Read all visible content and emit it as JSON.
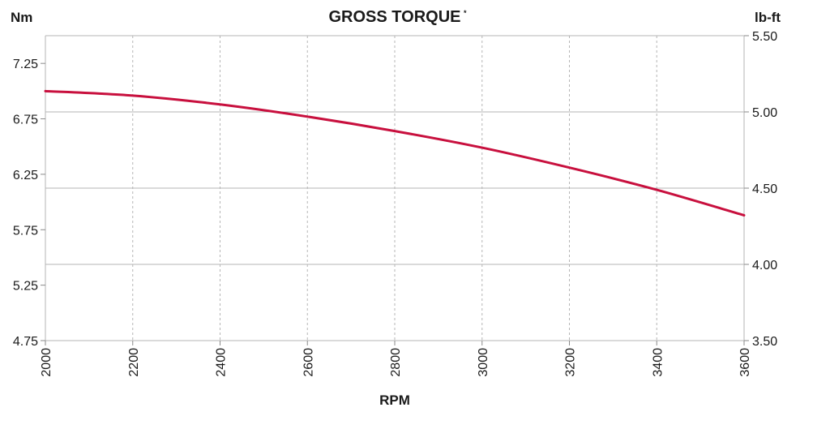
{
  "chart_data": {
    "type": "line",
    "title": "GROSS TORQUE",
    "title_superscript": "*",
    "xlabel": "RPM",
    "ylabel_left": "Nm",
    "ylabel_right": "lb-ft",
    "xlim": [
      2000,
      3600
    ],
    "xticks": [
      "2000",
      "2200",
      "2400",
      "2600",
      "2800",
      "3000",
      "3200",
      "3400",
      "3600"
    ],
    "xtick_values": [
      2000,
      2200,
      2400,
      2600,
      2800,
      3000,
      3200,
      3400,
      3600
    ],
    "ylim_left": [
      4.75,
      7.5
    ],
    "yticks_left": [
      "4.75",
      "5.25",
      "5.75",
      "6.25",
      "6.75",
      "7.25"
    ],
    "ytick_values_left": [
      4.75,
      5.25,
      5.75,
      6.25,
      6.75,
      7.25
    ],
    "ylim_right": [
      3.5,
      5.5
    ],
    "yticks_right": [
      "3.50",
      "4.00",
      "4.50",
      "5.00",
      "5.50"
    ],
    "ytick_values_right": [
      3.5,
      4.0,
      4.5,
      5.0,
      5.5
    ],
    "grid": {
      "vertical": "dashed",
      "horizontal": "right-axis ticks"
    },
    "line_color": "#c8103e",
    "series": [
      {
        "x": [
          2000,
          2200,
          2400,
          2600,
          2800,
          3000,
          3200,
          3400,
          3600
        ],
        "y": [
          7.0,
          6.96,
          6.88,
          6.77,
          6.64,
          6.49,
          6.31,
          6.11,
          5.88
        ]
      }
    ]
  }
}
